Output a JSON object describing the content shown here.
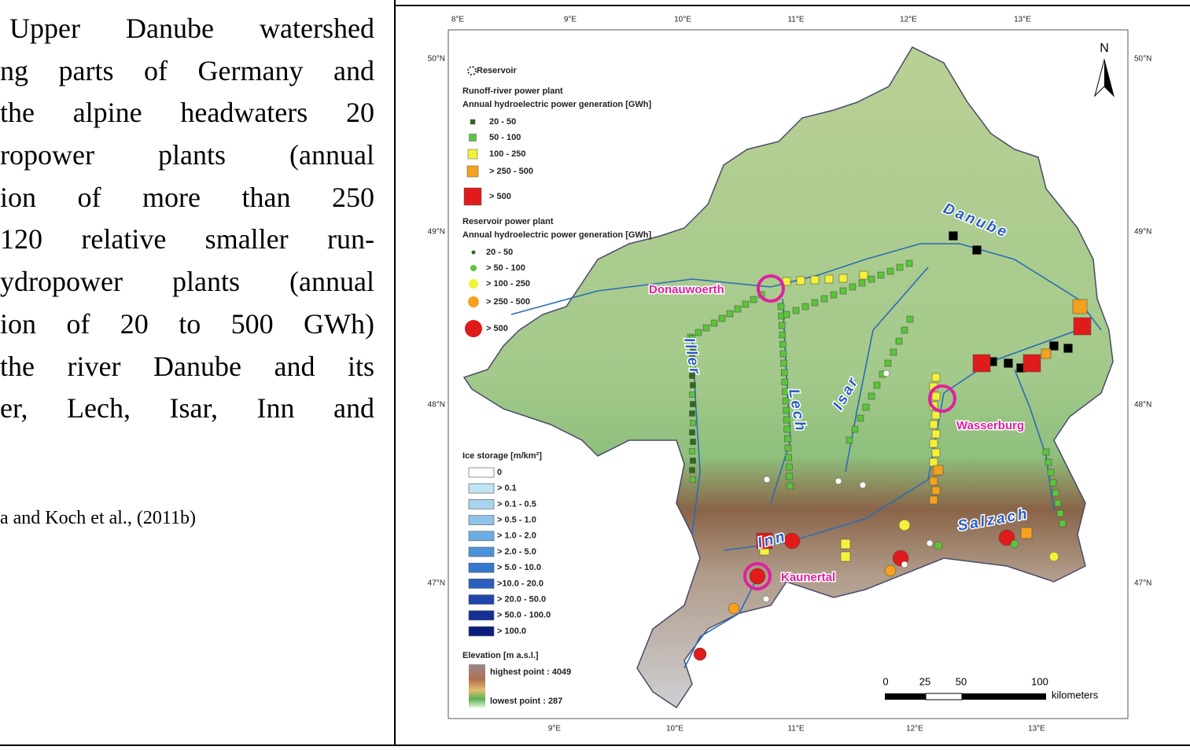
{
  "left_text": {
    "lines": [
      "Upper Danube watershed",
      "ng parts of Germany and",
      "the alpine headwaters 20",
      "ropower plants (annual",
      "ion of more than 250",
      "120 relative smaller run-",
      "ydropower plants (annual",
      "ion of 20 to 500 GWh)",
      "the river Danube and its",
      "er, Lech, Isar, Inn and"
    ],
    "citation": "a and Koch et al., (2011b)"
  },
  "map": {
    "lon_top": [
      "8°E",
      "9°E",
      "10°E",
      "11°E",
      "12°E",
      "13°E"
    ],
    "lon_bottom": [
      "9°E",
      "10°E",
      "11°E",
      "12°E",
      "13°E"
    ],
    "lat_left": [
      "50°N",
      "49°N",
      "48°N",
      "47°N"
    ],
    "lat_right": [
      "50°N",
      "49°N",
      "48°N",
      "47°N"
    ],
    "north": "N",
    "places": [
      "Donauwoerth",
      "Wasserburg",
      "Kaunertal"
    ],
    "rivers": [
      "Danube",
      "Iller",
      "Lech",
      "Isar",
      "Inn",
      "Salzach"
    ],
    "legend": {
      "reservoir": "Reservoir",
      "runoff_title": "Runoff-river power plant",
      "runoff_subtitle": "Annual hydroelectric power generation [GWh]",
      "runoff_items": [
        {
          "label": "20 - 50",
          "color": "#2e6b1f"
        },
        {
          "label": "50 - 100",
          "color": "#5cc43a"
        },
        {
          "label": "100 - 250",
          "color": "#f5f03a"
        },
        {
          "label": "> 250 - 500",
          "color": "#f5a01e"
        },
        {
          "label": "> 500",
          "color": "#e01b1b"
        }
      ],
      "res_title": "Reservoir power plant",
      "res_subtitle": "Annual hydroelectric power generation [GWh]",
      "res_items": [
        {
          "label": "20 - 50",
          "color": "#2e6b1f"
        },
        {
          "label": "> 50 - 100",
          "color": "#5cc43a"
        },
        {
          "label": "> 100 - 250",
          "color": "#f5f03a"
        },
        {
          "label": "> 250 - 500",
          "color": "#f5a01e"
        },
        {
          "label": "> 500",
          "color": "#e01b1b"
        }
      ],
      "ice_title": "Ice storage [m/km²]",
      "ice_items": [
        {
          "label": "0",
          "color": "#ffffff"
        },
        {
          "label": "> 0.1",
          "color": "#bfe4f5"
        },
        {
          "label": "> 0.1 - 0.5",
          "color": "#a9d4ef"
        },
        {
          "label": "> 0.5 - 1.0",
          "color": "#8ec3ea"
        },
        {
          "label": "> 1.0 - 2.0",
          "color": "#6aaee3"
        },
        {
          "label": "> 2.0 - 5.0",
          "color": "#4a93da"
        },
        {
          "label": "> 5.0 - 10.0",
          "color": "#3577cc"
        },
        {
          "label": ">10.0 - 20.0",
          "color": "#2a5fbf"
        },
        {
          "label": "> 20.0 - 50.0",
          "color": "#1f46ad"
        },
        {
          "label": "> 50.0 - 100.0",
          "color": "#152f96"
        },
        {
          "label": "> 100.0",
          "color": "#0b1c7a"
        }
      ],
      "elev_title": "Elevation [m a.s.l.]",
      "elev_high": "highest point : 4049",
      "elev_low": "lowest point : 287"
    },
    "scale": {
      "ticks": [
        "0",
        "25",
        "50",
        "100"
      ],
      "unit": "kilometers"
    }
  }
}
